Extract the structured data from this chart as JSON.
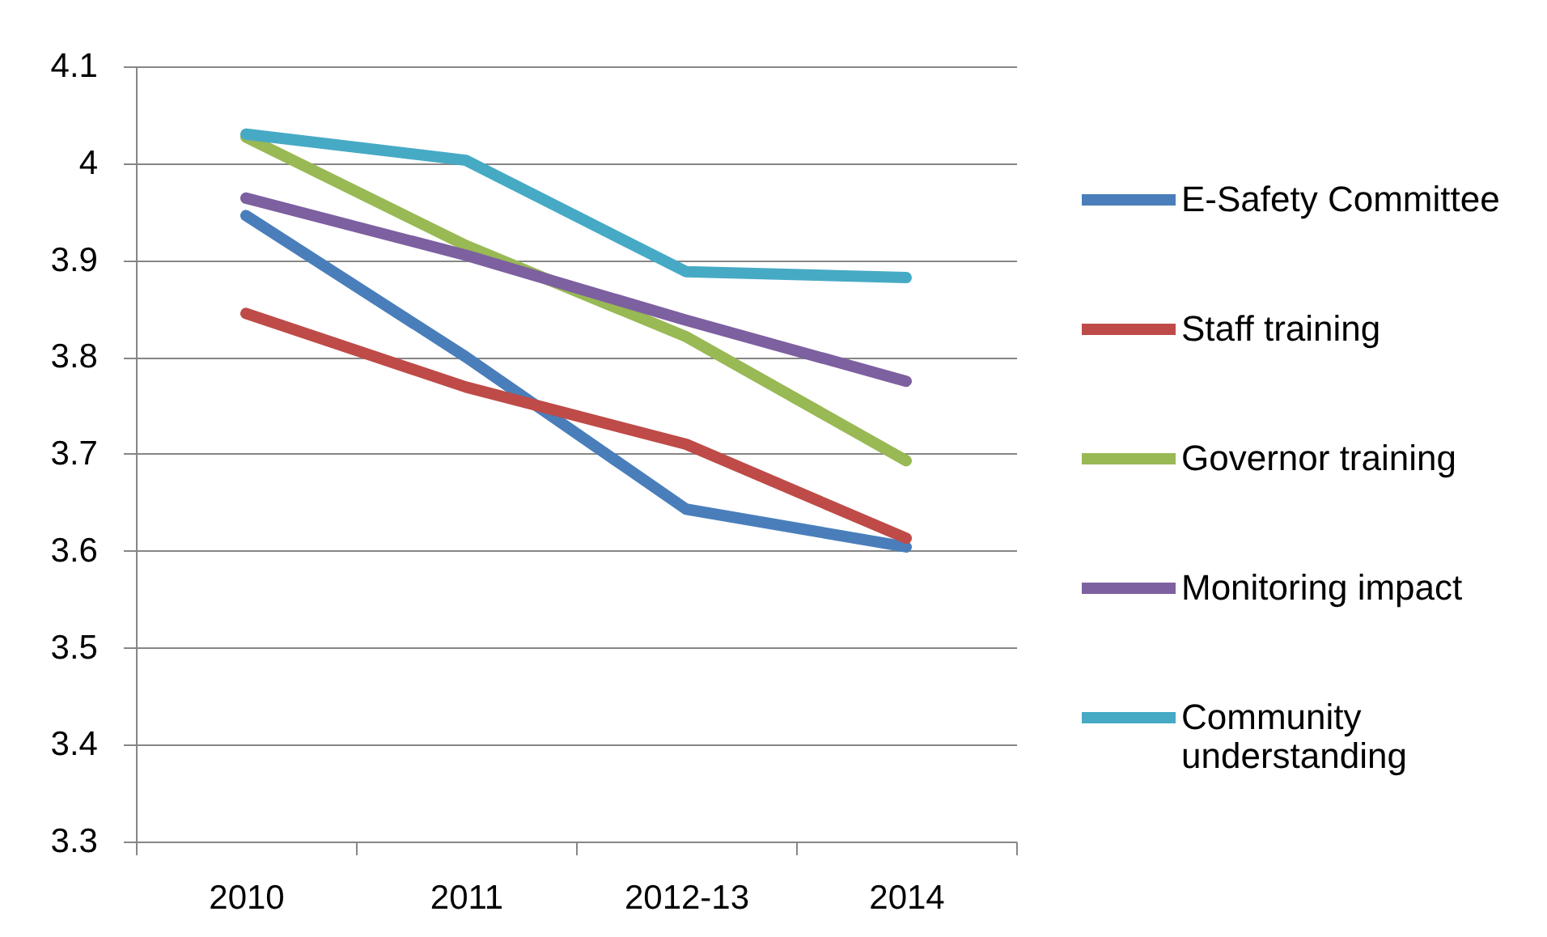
{
  "chart_data": {
    "type": "line",
    "categories": [
      "2010",
      "2011",
      "2012-13",
      "2014"
    ],
    "series": [
      {
        "name": "E-Safety Committee",
        "color": "#4a7ebb",
        "values": [
          3.946,
          3.8,
          3.643,
          3.604
        ]
      },
      {
        "name": "Staff training",
        "color": "#be4b48",
        "values": [
          3.845,
          3.769,
          3.71,
          3.613
        ]
      },
      {
        "name": "Governor training",
        "color": "#98b954",
        "values": [
          4.027,
          3.915,
          3.821,
          3.693
        ]
      },
      {
        "name": "Monitoring impact",
        "color": "#7d60a0",
        "values": [
          3.964,
          3.905,
          3.838,
          3.775
        ]
      },
      {
        "name": "Community understanding",
        "color": "#46aac5",
        "values": [
          4.03,
          4.003,
          3.888,
          3.882
        ]
      }
    ],
    "ylim": [
      3.3,
      4.1
    ],
    "yticks": [
      3.3,
      3.4,
      3.5,
      3.6,
      3.7,
      3.8,
      3.9,
      4,
      4.1
    ],
    "grid": "y",
    "legend": "right",
    "line_style": "solid"
  }
}
